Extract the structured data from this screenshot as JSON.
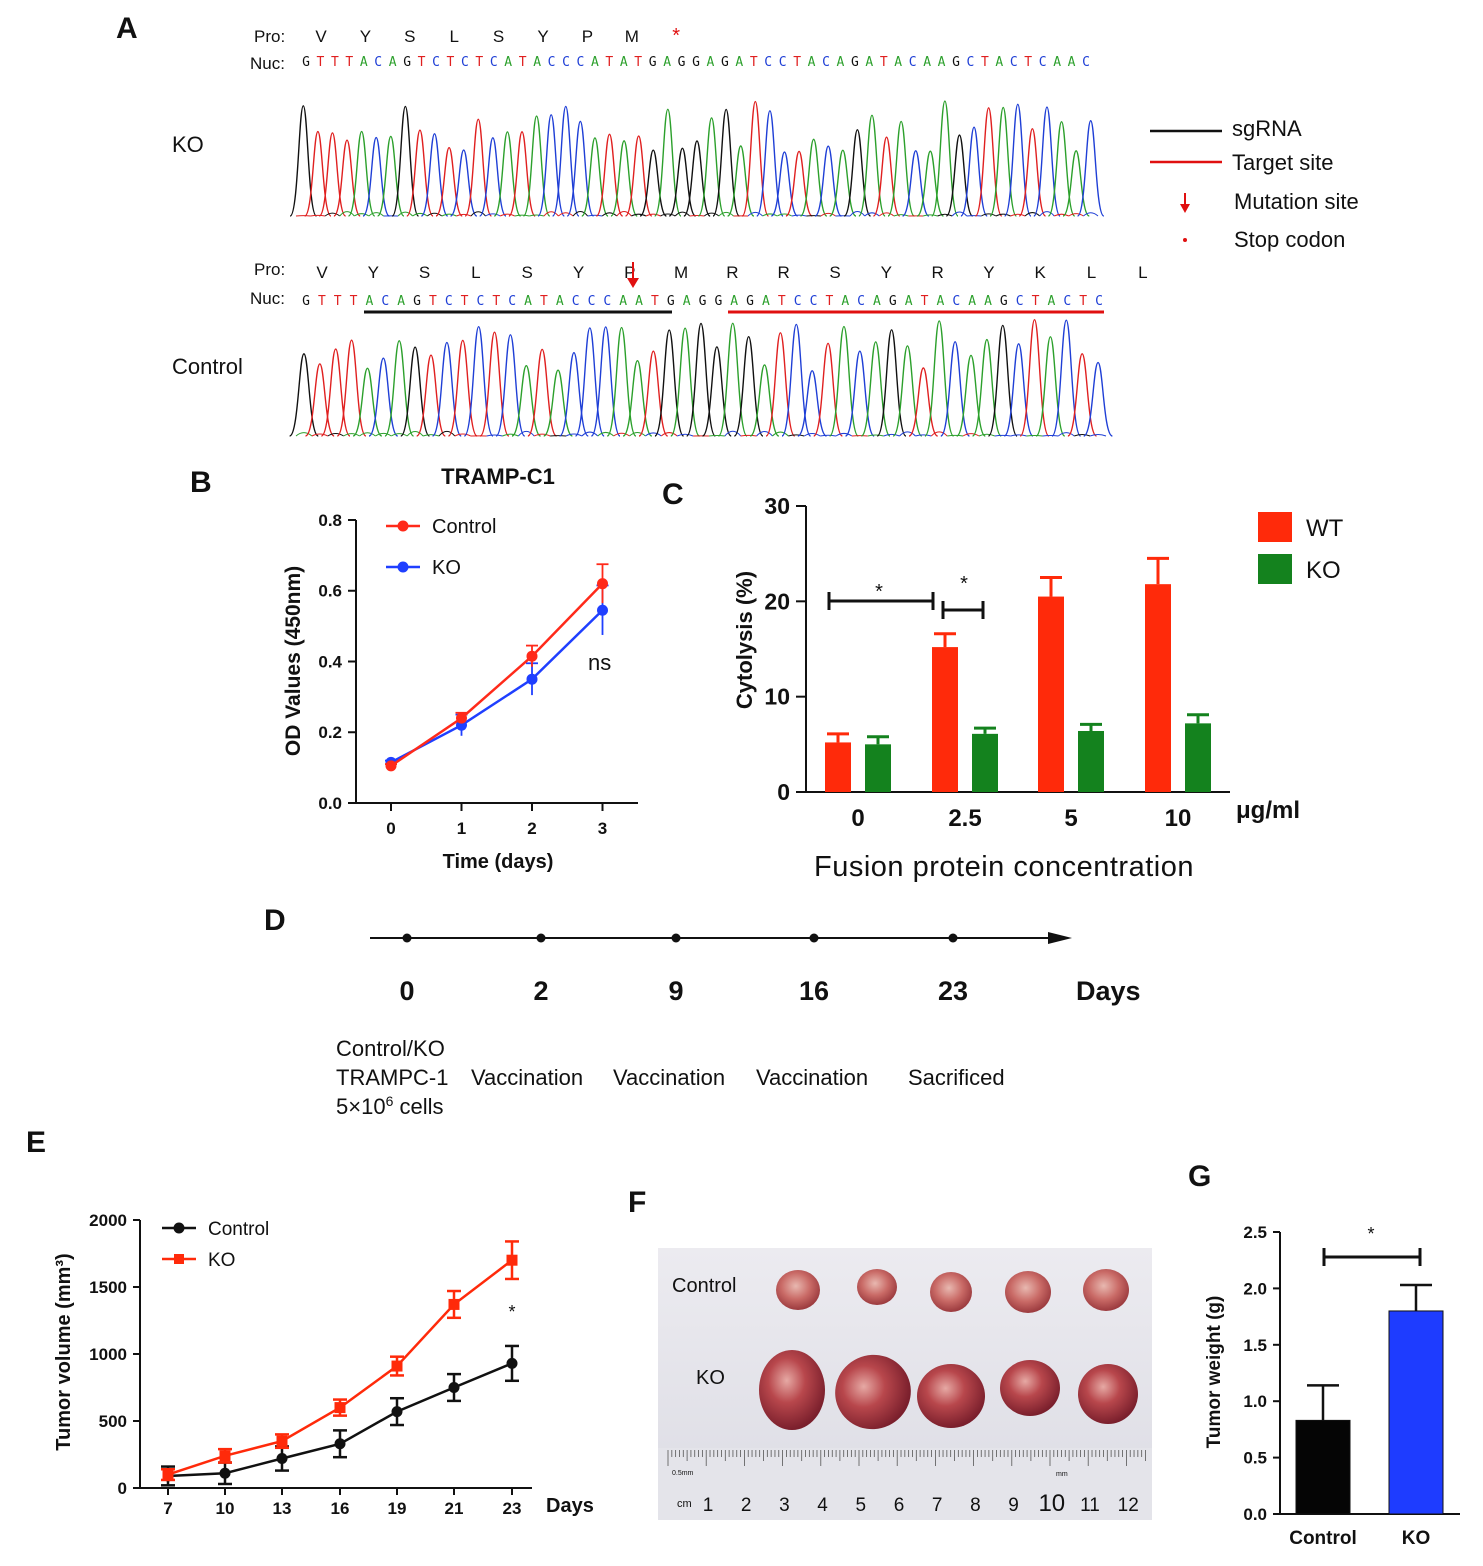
{
  "panels": {
    "A": "A",
    "B": "B",
    "C": "C",
    "D": "D",
    "E": "E",
    "F": "F",
    "G": "G"
  },
  "panel_a": {
    "ko": {
      "row_label": "KO",
      "pro_label": "Pro:",
      "nuc_label": "Nuc:",
      "protein": [
        "V",
        "Y",
        "S",
        "L",
        "S",
        "Y",
        "P",
        "M",
        "*"
      ],
      "nucleotides": "GTTTACAGTCTCTCATACCCATATGAGGAGATCCTACAGATACAAGCTACTCAAC"
    },
    "control": {
      "row_label": "Control",
      "pro_label": "Pro:",
      "nuc_label": "Nuc:",
      "protein": [
        "V",
        "Y",
        "S",
        "L",
        "S",
        "Y",
        "P",
        "M",
        "R",
        "R",
        "S",
        "Y",
        "R",
        "Y",
        "K",
        "L",
        "L"
      ],
      "nucleotides": "GTTTACAGTCTCTCATACCCAATGAGGAGATCCTACAGATACAAGCTACTC"
    },
    "legend": {
      "sgrna": "sgRNA",
      "target": "Target site",
      "mutation": "Mutation site",
      "stop": "Stop codon"
    },
    "colors": {
      "A": "#2ca02c",
      "C": "#1f3fd6",
      "G": "#111111",
      "T": "#e02020"
    }
  },
  "chart_data": [
    {
      "panel": "B",
      "type": "line",
      "title": "TRAMP-C1",
      "xlabel": "Time (days)",
      "ylabel": "OD Values (450nm)",
      "x": [
        0,
        1,
        2,
        3
      ],
      "xticks": [
        "0",
        "1",
        "2",
        "3"
      ],
      "yticks": [
        "0.0",
        "0.2",
        "0.4",
        "0.6",
        "0.8"
      ],
      "ylim": [
        0,
        0.8
      ],
      "legend_position": "top-left",
      "annotation": "ns",
      "series": [
        {
          "name": "Control",
          "color": "#ff2a1a",
          "values": [
            0.105,
            0.24,
            0.415,
            0.62
          ],
          "err": [
            0.005,
            0.015,
            0.03,
            0.055
          ]
        },
        {
          "name": "KO",
          "color": "#1f3fff",
          "values": [
            0.115,
            0.22,
            0.35,
            0.545
          ],
          "err": [
            0.005,
            0.03,
            0.045,
            0.07
          ]
        }
      ]
    },
    {
      "panel": "C",
      "type": "bar",
      "xlabel": "Fusion protein concentration",
      "ylabel": "Cytolysis (%)",
      "unit": "μg/ml",
      "categories": [
        "0",
        "2.5",
        "5",
        "10"
      ],
      "yticks": [
        "0",
        "10",
        "20",
        "30"
      ],
      "ylim": [
        0,
        30
      ],
      "legend_position": "top-right",
      "significance": [
        "*",
        "*"
      ],
      "series": [
        {
          "name": "WT",
          "color": "#ff2a0a",
          "values": [
            5.2,
            15.2,
            20.5,
            21.8
          ],
          "err": [
            0.9,
            1.4,
            2.0,
            2.7
          ]
        },
        {
          "name": "KO",
          "color": "#14821e",
          "values": [
            5.0,
            6.1,
            6.4,
            7.2
          ],
          "err": [
            0.8,
            0.6,
            0.7,
            0.9
          ]
        }
      ]
    },
    {
      "panel": "E",
      "type": "line",
      "xlabel": "Days",
      "ylabel": "Tumor volume (mm³)",
      "x": [
        7,
        10,
        13,
        16,
        19,
        21,
        23
      ],
      "xticks": [
        "7",
        "10",
        "13",
        "16",
        "19",
        "21",
        "23"
      ],
      "yticks": [
        "0",
        "500",
        "1000",
        "1500",
        "2000"
      ],
      "ylim": [
        0,
        2000
      ],
      "legend_position": "top-left",
      "annotation": "*",
      "series": [
        {
          "name": "Control",
          "color": "#111111",
          "marker": "circle",
          "values": [
            90,
            110,
            220,
            330,
            570,
            750,
            930
          ],
          "err": [
            70,
            80,
            90,
            100,
            100,
            100,
            130
          ]
        },
        {
          "name": "KO",
          "color": "#ff2a0a",
          "marker": "square",
          "values": [
            100,
            240,
            350,
            600,
            910,
            1370,
            1700
          ],
          "err": [
            40,
            50,
            50,
            60,
            70,
            100,
            140
          ]
        }
      ]
    },
    {
      "panel": "G",
      "type": "bar",
      "ylabel": "Tumor weight (g)",
      "categories": [
        "Control",
        "KO"
      ],
      "yticks": [
        "0.0",
        "0.5",
        "1.0",
        "1.5",
        "2.0",
        "2.5"
      ],
      "ylim": [
        0,
        2.5
      ],
      "significance": "*",
      "values": [
        0.83,
        1.8
      ],
      "err": [
        0.31,
        0.23
      ],
      "colors": [
        "#050505",
        "#1e3cff"
      ]
    }
  ],
  "panel_d": {
    "unit": "Days",
    "days": [
      "0",
      "2",
      "9",
      "16",
      "23"
    ],
    "event_line1": [
      "Control/KO",
      "",
      "",
      "",
      ""
    ],
    "event_line2": [
      "TRAMPC-1",
      "Vaccination",
      "Vaccination",
      "Vaccination",
      "Sacrificed"
    ],
    "cells_base": "5×10",
    "cells_exp": "6",
    "cells_tail": " cells"
  },
  "panel_f": {
    "control_label": "Control",
    "ko_label": "KO",
    "ruler_unit": "cm",
    "ruler_numbers": [
      "1",
      "2",
      "3",
      "4",
      "5",
      "6",
      "7",
      "8",
      "9",
      "10",
      "11",
      "12"
    ],
    "ruler_small_left": "0.5mm",
    "ruler_small_right": "mm"
  }
}
